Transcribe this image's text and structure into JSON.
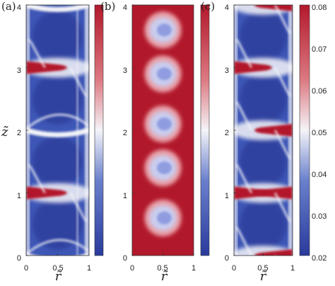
{
  "figure": {
    "panel_labels": [
      "(a)",
      "(b)",
      "(c)"
    ],
    "ylabel": "z̃",
    "xlabel": "r̃",
    "x_ticks": [
      "0",
      "0.5",
      "1"
    ],
    "y_ticks": [
      "0",
      "1",
      "2",
      "3",
      "4"
    ],
    "colorbar_ticks": [
      "0.02",
      "0.03",
      "0.04",
      "0.05",
      "0.06",
      "0.07",
      "0.08"
    ]
  },
  "chart_data": [
    {
      "type": "heatmap",
      "panel": "(a)",
      "xlim": [
        0,
        1
      ],
      "ylim": [
        0,
        4
      ],
      "xlabel": "r̃",
      "ylabel": "z̃",
      "colormap": "blue-white-red",
      "bands": [
        {
          "z": 0.0,
          "kind": "thin-white"
        },
        {
          "z": 1.0,
          "kind": "red",
          "side": "left"
        },
        {
          "z": 2.0,
          "kind": "thin-white"
        },
        {
          "z": 3.0,
          "kind": "red",
          "side": "left"
        },
        {
          "z": 4.0,
          "kind": "thin-white"
        }
      ],
      "colorbar": "unlabeled"
    },
    {
      "type": "heatmap",
      "panel": "(b)",
      "xlim": [
        0,
        1
      ],
      "ylim": [
        0,
        4
      ],
      "xlabel": "r̃",
      "colormap": "blue-white-red",
      "background": "red",
      "blobs_z": [
        0.6,
        1.4,
        2.1,
        2.9,
        3.6
      ],
      "colorbar": "unlabeled"
    },
    {
      "type": "heatmap",
      "panel": "(c)",
      "xlim": [
        0,
        1
      ],
      "ylim": [
        0,
        4
      ],
      "xlabel": "r̃",
      "colormap": "blue-white-red",
      "bands": [
        {
          "z": 0.0,
          "kind": "red",
          "side": "right"
        },
        {
          "z": 1.0,
          "kind": "red",
          "side": "both"
        },
        {
          "z": 2.0,
          "kind": "red",
          "side": "right"
        },
        {
          "z": 3.0,
          "kind": "red",
          "side": "left"
        },
        {
          "z": 4.0,
          "kind": "red",
          "side": "right"
        }
      ],
      "colorbar_range": [
        0.02,
        0.08
      ],
      "colorbar_ticks": [
        0.02,
        0.03,
        0.04,
        0.05,
        0.06,
        0.07,
        0.08
      ]
    }
  ],
  "colors": {
    "blue_dark": "#25318f",
    "blue": "#3e57b6",
    "white": "#f4f4f8",
    "red": "#b2182b",
    "red_dark": "#8e1325"
  }
}
